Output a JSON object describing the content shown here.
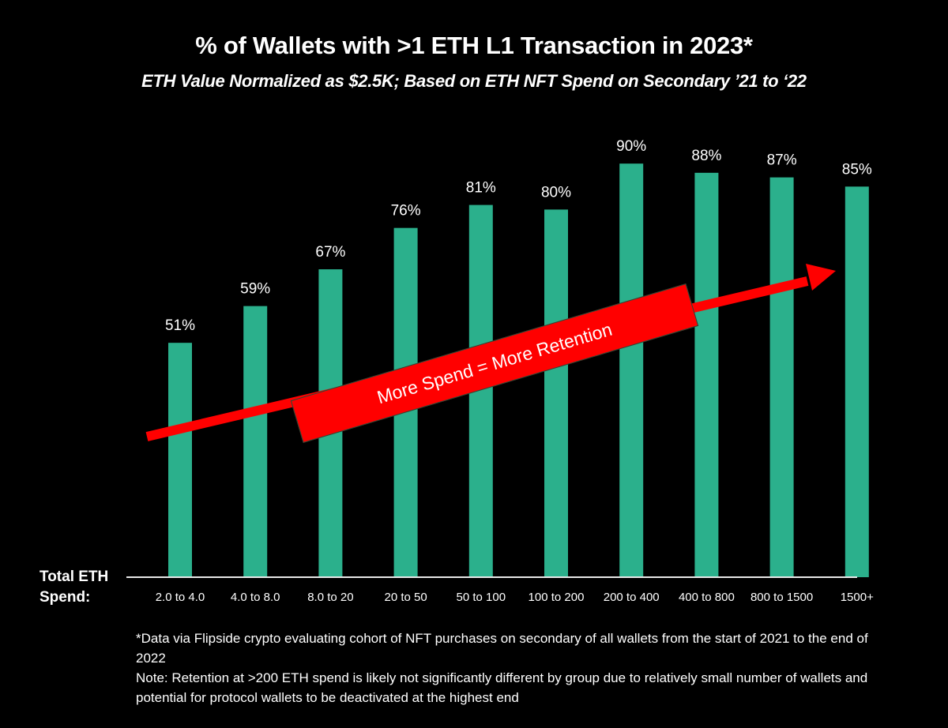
{
  "title": "% of Wallets with >1 ETH L1 Transaction in 2023*",
  "subtitle": "ETH Value Normalized as $2.5K; Based on ETH NFT Spend on Secondary ’21 to ‘22",
  "axis_label_lines": [
    "Total ETH",
    "Spend:"
  ],
  "annotation": {
    "text": "More Spend = More Retention",
    "color": "#ff0000"
  },
  "footnotes": [
    "*Data via Flipside crypto evaluating cohort of NFT purchases on secondary of all wallets from the start of 2021 to the end of 2022",
    "Note: Retention at >200 ETH spend is likely not significantly different by group due to relatively small number of wallets and potential for protocol wallets to be deactivated at the highest end"
  ],
  "colors": {
    "bar": "#2bb08c",
    "background": "#000000",
    "text": "#ffffff",
    "arrow": "#ff0000"
  },
  "chart_data": {
    "type": "bar",
    "title": "% of Wallets with >1 ETH L1 Transaction in 2023*",
    "subtitle": "ETH Value Normalized as $2.5K; Based on ETH NFT Spend on Secondary ’21 to ‘22",
    "xlabel": "Total ETH Spend:",
    "ylabel": "",
    "categories": [
      "2.0 to 4.0",
      "4.0 to 8.0",
      "8.0 to 20",
      "20 to 50",
      "50 to 100",
      "100 to 200",
      "200 to 400",
      "400 to 800",
      "800 to 1500",
      "1500+"
    ],
    "values": [
      51,
      59,
      67,
      76,
      81,
      80,
      90,
      88,
      87,
      85
    ],
    "value_labels": [
      "51%",
      "59%",
      "67%",
      "76%",
      "81%",
      "80%",
      "90%",
      "88%",
      "87%",
      "85%"
    ],
    "unit": "%",
    "ylim": [
      0,
      100
    ],
    "grid": false,
    "legend": "none",
    "annotation": "More Spend = More Retention (upward trend arrow)"
  }
}
